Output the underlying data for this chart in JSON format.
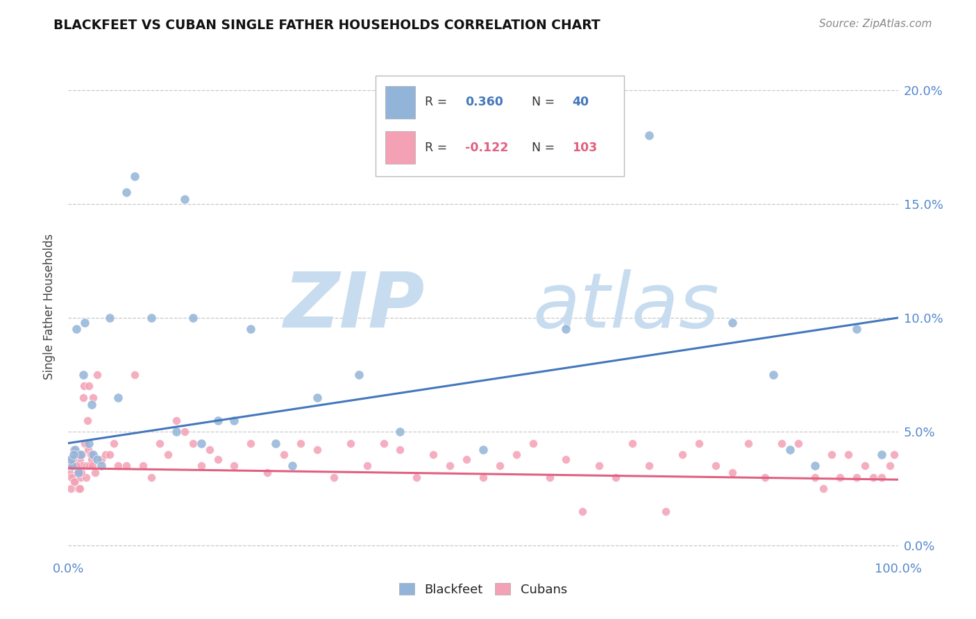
{
  "title": "BLACKFEET VS CUBAN SINGLE FATHER HOUSEHOLDS CORRELATION CHART",
  "source": "Source: ZipAtlas.com",
  "ylabel": "Single Father Households",
  "blackfeet_R": 0.36,
  "blackfeet_N": 40,
  "cuban_R": -0.122,
  "cuban_N": 103,
  "blackfeet_color": "#92B4D9",
  "cuban_color": "#F4A0B5",
  "blackfeet_line_color": "#4477BB",
  "cuban_line_color": "#E06080",
  "bf_line_y0": 4.5,
  "bf_line_y1": 10.0,
  "cb_line_y0": 3.4,
  "cb_line_y1": 2.9,
  "ylim_min": -0.5,
  "ylim_max": 21.5,
  "yticks": [
    0,
    5,
    10,
    15,
    20
  ],
  "xticks": [
    0,
    100
  ],
  "xtick_labels": [
    "0.0%",
    "100.0%"
  ],
  "ytick_labels": [
    "0.0%",
    "5.0%",
    "10.0%",
    "15.0%",
    "20.0%"
  ],
  "tick_color": "#5588CC",
  "bf_x": [
    0.5,
    0.8,
    1.0,
    1.5,
    2.0,
    2.5,
    3.0,
    3.5,
    4.0,
    5.0,
    6.0,
    7.0,
    8.0,
    10.0,
    13.0,
    14.0,
    15.0,
    16.0,
    18.0,
    20.0,
    22.0,
    25.0,
    27.0,
    30.0,
    35.0,
    40.0,
    50.0,
    60.0,
    70.0,
    80.0,
    85.0,
    87.0,
    90.0,
    95.0,
    98.0,
    0.3,
    0.6,
    1.2,
    1.8,
    2.8
  ],
  "bf_y": [
    3.5,
    4.2,
    9.5,
    4.0,
    9.8,
    4.5,
    4.0,
    3.8,
    3.5,
    10.0,
    6.5,
    15.5,
    16.2,
    10.0,
    5.0,
    15.2,
    10.0,
    4.5,
    5.5,
    5.5,
    9.5,
    4.5,
    3.5,
    6.5,
    7.5,
    5.0,
    4.2,
    9.5,
    18.0,
    9.8,
    7.5,
    4.2,
    3.5,
    9.5,
    4.0,
    3.8,
    4.0,
    3.2,
    7.5,
    6.2
  ],
  "cb_x": [
    0.1,
    0.2,
    0.3,
    0.4,
    0.5,
    0.6,
    0.7,
    0.8,
    0.9,
    1.0,
    1.1,
    1.2,
    1.3,
    1.4,
    1.5,
    1.6,
    1.7,
    1.8,
    1.9,
    2.0,
    2.1,
    2.2,
    2.3,
    2.4,
    2.5,
    2.6,
    2.7,
    2.8,
    2.9,
    3.0,
    3.2,
    3.5,
    4.0,
    4.5,
    5.0,
    5.5,
    6.0,
    7.0,
    8.0,
    9.0,
    10.0,
    11.0,
    12.0,
    13.0,
    14.0,
    15.0,
    16.0,
    17.0,
    18.0,
    20.0,
    22.0,
    24.0,
    26.0,
    28.0,
    30.0,
    32.0,
    34.0,
    36.0,
    38.0,
    40.0,
    42.0,
    44.0,
    46.0,
    48.0,
    50.0,
    52.0,
    54.0,
    56.0,
    58.0,
    60.0,
    62.0,
    64.0,
    66.0,
    68.0,
    70.0,
    72.0,
    74.0,
    76.0,
    78.0,
    80.0,
    82.0,
    84.0,
    86.0,
    88.0,
    90.0,
    91.0,
    92.0,
    93.0,
    94.0,
    95.0,
    96.0,
    97.0,
    98.0,
    99.0,
    99.5,
    0.15,
    0.35,
    0.55,
    0.75,
    0.95,
    1.15,
    1.35,
    1.55
  ],
  "cb_y": [
    3.2,
    3.8,
    2.5,
    3.5,
    3.8,
    4.2,
    3.0,
    2.8,
    3.5,
    4.0,
    3.2,
    2.5,
    3.5,
    3.8,
    3.0,
    4.0,
    3.5,
    6.5,
    7.0,
    4.5,
    3.0,
    3.5,
    5.5,
    4.2,
    7.0,
    3.5,
    4.0,
    3.8,
    3.5,
    6.5,
    3.2,
    7.5,
    3.8,
    4.0,
    4.0,
    4.5,
    3.5,
    3.5,
    7.5,
    3.5,
    3.0,
    4.5,
    4.0,
    5.5,
    5.0,
    4.5,
    3.5,
    4.2,
    3.8,
    3.5,
    4.5,
    3.2,
    4.0,
    4.5,
    4.2,
    3.0,
    4.5,
    3.5,
    4.5,
    4.2,
    3.0,
    4.0,
    3.5,
    3.8,
    3.0,
    3.5,
    4.0,
    4.5,
    3.0,
    3.8,
    1.5,
    3.5,
    3.0,
    4.5,
    3.5,
    1.5,
    4.0,
    4.5,
    3.5,
    3.2,
    4.5,
    3.0,
    4.5,
    4.5,
    3.0,
    2.5,
    4.0,
    3.0,
    4.0,
    3.0,
    3.5,
    3.0,
    3.0,
    3.5,
    4.0,
    3.5,
    3.0,
    3.8,
    2.8,
    3.5,
    4.0,
    2.5,
    3.2
  ]
}
